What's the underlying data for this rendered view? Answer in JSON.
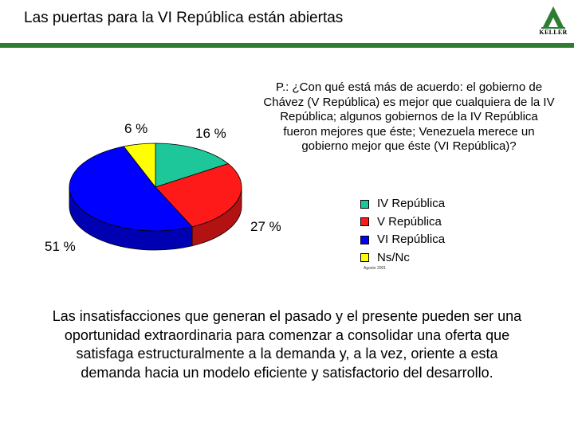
{
  "header": {
    "title": "Las puertas para la VI República están abiertas",
    "logo_text": "KELLER",
    "accent_color": "#2e7d32"
  },
  "question": "P.: ¿Con qué está más de acuerdo: el gobierno de Chávez (V República) es mejor que cualquiera de la IV República; algunos gobiernos de la IV República fueron mejores que éste; Venezuela merece un gobierno mejor que éste (VI República)?",
  "date_note": "Agosto 2001",
  "caption": "Las insatisfacciones que generan el pasado y el presente pueden ser una oportunidad extraordinaria para comenzar a consolidar una oferta que satisfaga estructuralmente a la demanda y, a la vez, oriente a esta demanda hacia un modelo eficiente y satisfactorio del desarrollo.",
  "chart_data": {
    "type": "pie",
    "title": "",
    "slices": [
      {
        "label": "IV República",
        "value": 16,
        "display": "16 %",
        "color": "#1ec79a"
      },
      {
        "label": "V República",
        "value": 27,
        "display": "27 %",
        "color": "#ff1a1a"
      },
      {
        "label": "VI República",
        "value": 51,
        "display": "51 %",
        "color": "#0000ff"
      },
      {
        "label": "Ns/Nc",
        "value": 6,
        "display": "6 %",
        "color": "#ffff00"
      }
    ],
    "legend_placement": "right"
  }
}
